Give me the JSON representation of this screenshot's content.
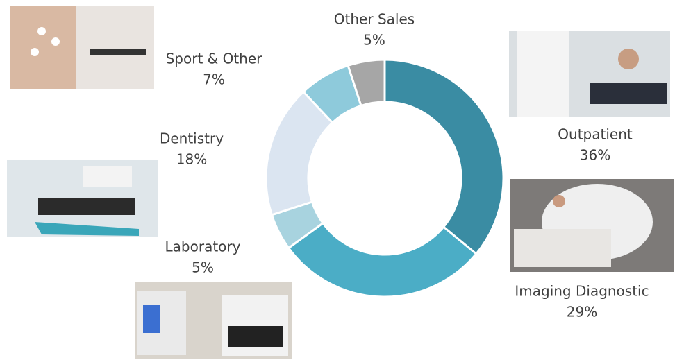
{
  "chart_data": {
    "type": "donut",
    "categories": [
      "Outpatient",
      "Imaging Diagnostic",
      "Laboratory",
      "Dentistry",
      "Sport & Other",
      "Other Sales"
    ],
    "values": [
      36,
      29,
      5,
      18,
      7,
      5
    ],
    "value_labels": [
      "36%",
      "29%",
      "5%",
      "18%",
      "7%",
      "5%"
    ],
    "colors": [
      "#3a8ca3",
      "#4badc6",
      "#a8d3df",
      "#dbe5f1",
      "#8ecadb",
      "#a6a6a6"
    ]
  }
}
